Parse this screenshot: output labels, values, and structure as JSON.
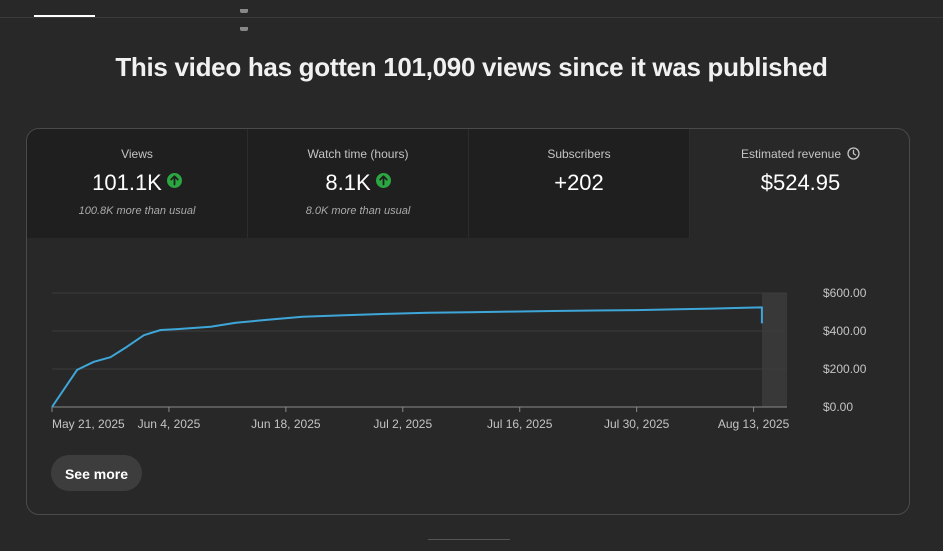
{
  "headline": "This video has gotten 101,090 views since it was published",
  "metrics": [
    {
      "label": "Views",
      "value": "101.1K",
      "trend": "up",
      "sub": "100.8K more than usual"
    },
    {
      "label": "Watch time (hours)",
      "value": "8.1K",
      "trend": "up",
      "sub": "8.0K more than usual"
    },
    {
      "label": "Subscribers",
      "value": "+202"
    },
    {
      "label": "Estimated revenue",
      "value": "$524.95",
      "icon": "clock-icon"
    }
  ],
  "see_more_label": "See more",
  "colors": {
    "line": "#3ea6d8",
    "trend_up": "#2ba640",
    "background": "#282828"
  },
  "chart_data": {
    "type": "line",
    "title": "",
    "xlabel": "",
    "ylabel": "",
    "x_ticks": [
      "May 21, 2025",
      "Jun 4, 2025",
      "Jun 18, 2025",
      "Jul 2, 2025",
      "Jul 16, 2025",
      "Jul 30, 2025",
      "Aug 13, 2025"
    ],
    "y_ticks": [
      "$0.00",
      "$200.00",
      "$400.00",
      "$600.00"
    ],
    "ylim": [
      0,
      600
    ],
    "xlim": [
      "2025-05-21",
      "2025-08-17"
    ],
    "grid": true,
    "highlight_range": [
      "2025-08-14",
      "2025-08-17"
    ],
    "series": [
      {
        "x": [
          "2025-05-21",
          "2025-05-24",
          "2025-05-26",
          "2025-05-28",
          "2025-05-30",
          "2025-06-01",
          "2025-06-03",
          "2025-06-05",
          "2025-06-09",
          "2025-06-12",
          "2025-06-16",
          "2025-06-20",
          "2025-06-25",
          "2025-06-30",
          "2025-07-05",
          "2025-07-10",
          "2025-07-15",
          "2025-07-20",
          "2025-07-25",
          "2025-07-30",
          "2025-08-04",
          "2025-08-08",
          "2025-08-12",
          "2025-08-14",
          "2025-08-14"
        ],
        "y": [
          0,
          195,
          238,
          262,
          318,
          378,
          405,
          410,
          422,
          443,
          460,
          475,
          483,
          490,
          496,
          499,
          502,
          505,
          508,
          510,
          515,
          518,
          522,
          524,
          440
        ]
      }
    ]
  }
}
